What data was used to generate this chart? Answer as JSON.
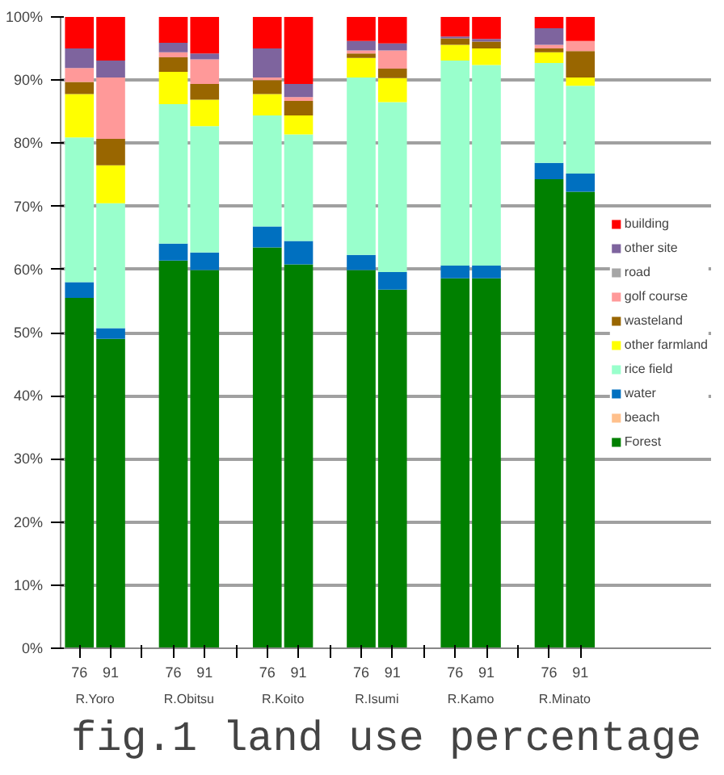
{
  "chart_data": {
    "type": "bar",
    "stacked": true,
    "title": "fig.1 land use percentage",
    "categories": [
      "76",
      "91",
      null,
      "76",
      "91",
      null,
      "76",
      "91",
      null,
      "76",
      "91",
      null,
      "76",
      "91",
      null,
      "76",
      "91"
    ],
    "annotations": [
      "R.Yoro",
      "R.Obitsu",
      "R.Koito",
      "R.Isumi",
      "R.Kamo",
      "R.Minato"
    ],
    "series": [
      {
        "name": "Forest",
        "color": "#008000",
        "values": [
          55.5,
          49,
          null,
          61.4,
          59.9,
          null,
          63.5,
          60.8,
          null,
          59.9,
          56.8,
          null,
          58.6,
          58.6,
          null,
          74.3,
          72.3
        ]
      },
      {
        "name": "beach",
        "color": "#ffc08c",
        "values": [
          0,
          0,
          null,
          0,
          0,
          null,
          0,
          0,
          null,
          0,
          0,
          null,
          0,
          0,
          null,
          0,
          0
        ]
      },
      {
        "name": "water",
        "color": "#0070c0",
        "values": [
          2.5,
          1.7,
          null,
          2.7,
          2.8,
          null,
          3.3,
          3.7,
          null,
          2.4,
          2.8,
          null,
          2.0,
          2.0,
          null,
          2.6,
          2.9
        ]
      },
      {
        "name": "rice field",
        "color": "#99ffcc",
        "values": [
          22.9,
          19.8,
          null,
          22.1,
          20.0,
          null,
          17.6,
          16.9,
          null,
          28.1,
          26.9,
          null,
          32.5,
          31.8,
          null,
          15.8,
          13.9
        ]
      },
      {
        "name": "other farmland",
        "color": "#ffff00",
        "values": [
          6.9,
          6.0,
          null,
          5.1,
          4.2,
          null,
          3.4,
          3.0,
          null,
          3.1,
          3.8,
          null,
          2.5,
          2.6,
          null,
          1.7,
          1.3
        ]
      },
      {
        "name": "wasteland",
        "color": "#996600",
        "values": [
          1.9,
          4.2,
          null,
          2.3,
          2.5,
          null,
          2.2,
          2.3,
          null,
          0.7,
          1.5,
          null,
          1.0,
          1.1,
          null,
          0.6,
          4.2
        ]
      },
      {
        "name": "golf course",
        "color": "#ff9999",
        "values": [
          2.2,
          9.7,
          null,
          0.8,
          3.9,
          null,
          0.4,
          0.6,
          null,
          0.5,
          2.9,
          null,
          0,
          0,
          null,
          0.6,
          1.6
        ]
      },
      {
        "name": "road",
        "color": "#a6a6a6",
        "values": [
          0,
          0,
          null,
          0,
          0,
          null,
          0,
          0,
          null,
          0,
          0,
          null,
          0,
          0,
          null,
          0,
          0
        ]
      },
      {
        "name": "other site",
        "color": "#7e649e",
        "values": [
          3.1,
          2.7,
          null,
          1.5,
          0.9,
          null,
          4.6,
          2.1,
          null,
          1.5,
          1.1,
          null,
          0.3,
          0.4,
          null,
          2.6,
          0
        ]
      },
      {
        "name": "building",
        "color": "#ff0000",
        "values": [
          5.0,
          6.9,
          null,
          4.1,
          5.8,
          null,
          5.0,
          10.6,
          null,
          3.8,
          4.2,
          null,
          3.1,
          3.5,
          null,
          1.8,
          3.8
        ]
      }
    ],
    "ylim": [
      0,
      100
    ],
    "yticks": [
      {
        "value": 0,
        "label": "0%"
      },
      {
        "value": 10,
        "label": "10%"
      },
      {
        "value": 20,
        "label": "20%"
      },
      {
        "value": 30,
        "label": "30%"
      },
      {
        "value": 40,
        "label": "40%"
      },
      {
        "value": 50,
        "label": "50%"
      },
      {
        "value": 60,
        "label": "60%"
      },
      {
        "value": 70,
        "label": "70%"
      },
      {
        "value": 80,
        "label": "80%"
      },
      {
        "value": 90,
        "label": "90%"
      },
      {
        "value": 100,
        "label": "100%"
      }
    ],
    "grid": "y",
    "legend": "right"
  }
}
